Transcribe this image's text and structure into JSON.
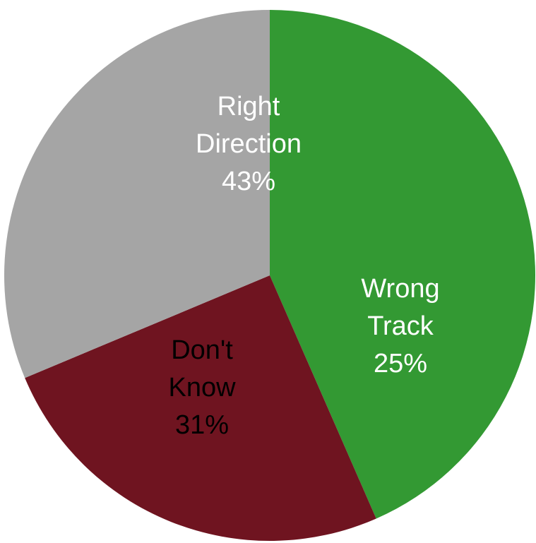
{
  "chart_data": {
    "type": "pie",
    "title": "",
    "start_angle_deg": 270,
    "direction": "clockwise",
    "slices": [
      {
        "name": "Right Direction",
        "value": 43,
        "label_lines": [
          "Right",
          "Direction",
          "43%"
        ],
        "color": "#339933",
        "label_color": "#ffffff"
      },
      {
        "name": "Wrong Track",
        "value": 25,
        "label_lines": [
          "Wrong",
          "Track",
          "25%"
        ],
        "color": "#6f1420",
        "label_color": "#ffffff"
      },
      {
        "name": "Don't Know",
        "value": 31,
        "label_lines": [
          "Don't",
          "Know",
          "31%"
        ],
        "color": "#a5a5a5",
        "label_color": "#000000"
      }
    ]
  }
}
